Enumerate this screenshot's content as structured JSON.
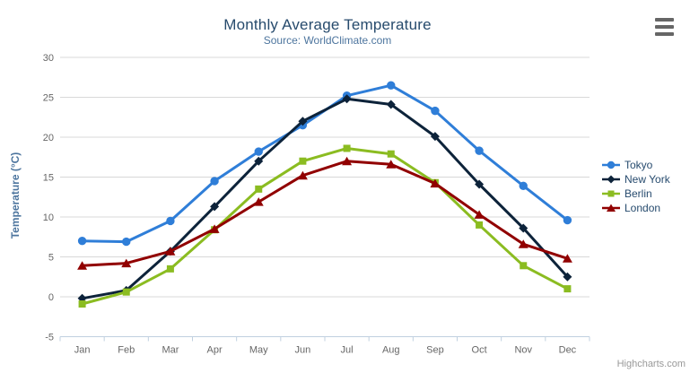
{
  "chart_data": {
    "type": "line",
    "title": "Monthly Average Temperature",
    "subtitle": "Source: WorldClimate.com",
    "ylabel": "Temperature (°C)",
    "xlabel": "",
    "categories": [
      "Jan",
      "Feb",
      "Mar",
      "Apr",
      "May",
      "Jun",
      "Jul",
      "Aug",
      "Sep",
      "Oct",
      "Nov",
      "Dec"
    ],
    "ylim": [
      -5,
      30
    ],
    "yticks": [
      -5,
      0,
      5,
      10,
      15,
      20,
      25,
      30
    ],
    "grid": true,
    "legend_position": "right",
    "series": [
      {
        "name": "Tokyo",
        "color": "#2f7ed8",
        "marker": "circle",
        "values": [
          7.0,
          6.9,
          9.5,
          14.5,
          18.2,
          21.5,
          25.2,
          26.5,
          23.3,
          18.3,
          13.9,
          9.6
        ]
      },
      {
        "name": "New York",
        "color": "#0d233a",
        "marker": "diamond",
        "values": [
          -0.2,
          0.8,
          5.7,
          11.3,
          17.0,
          22.0,
          24.8,
          24.1,
          20.1,
          14.1,
          8.6,
          2.5
        ]
      },
      {
        "name": "Berlin",
        "color": "#8bbc21",
        "marker": "square",
        "values": [
          -0.9,
          0.6,
          3.5,
          8.4,
          13.5,
          17.0,
          18.6,
          17.9,
          14.3,
          9.0,
          3.9,
          1.0
        ]
      },
      {
        "name": "London",
        "color": "#910000",
        "marker": "triangle",
        "values": [
          3.9,
          4.2,
          5.7,
          8.5,
          11.9,
          15.2,
          17.0,
          16.6,
          14.2,
          10.3,
          6.6,
          4.8
        ]
      }
    ]
  },
  "credits": {
    "label": "Highcharts.com"
  },
  "colors": {
    "title": "#274b6d",
    "subtitle": "#4d759e",
    "axis_title": "#4d759e",
    "axis_label": "#666666",
    "grid": "#d8d8d8",
    "axis_line": "#c0d0e0",
    "legend_text": "#274b6e",
    "credits": "#999999"
  }
}
